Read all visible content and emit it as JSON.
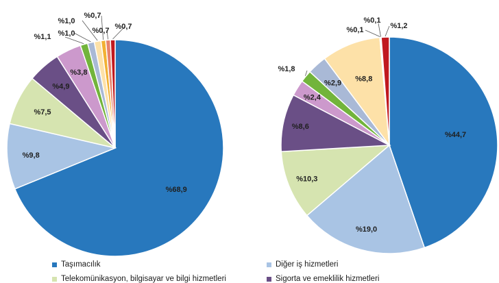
{
  "chart_data": [
    {
      "type": "pie",
      "slices": [
        {
          "label": "%68,9",
          "value": 68.9,
          "color": "#2878bd"
        },
        {
          "label": "%9,8",
          "value": 9.8,
          "color": "#a9c4e4"
        },
        {
          "label": "%7,5",
          "value": 7.5,
          "color": "#d6e4b0"
        },
        {
          "label": "%4,9",
          "value": 4.9,
          "color": "#6a4f86"
        },
        {
          "label": "%3,8",
          "value": 3.8,
          "color": "#cc99cc"
        },
        {
          "label": "%1,1",
          "value": 1.1,
          "color": "#72b43b"
        },
        {
          "label": "%1,0",
          "value": 1.0,
          "color": "#a9b9d6"
        },
        {
          "label": "%1,0",
          "value": 1.0,
          "color": "#fde1a8"
        },
        {
          "label": "%0,7",
          "value": 0.7,
          "color": "#f2b134"
        },
        {
          "label": "%0,7",
          "value": 0.7,
          "color": "#e8836b"
        },
        {
          "label": "%0,7",
          "value": 0.7,
          "color": "#c0191f"
        }
      ]
    },
    {
      "type": "pie",
      "slices": [
        {
          "label": "%44,7",
          "value": 44.7,
          "color": "#2878bd"
        },
        {
          "label": "%19,0",
          "value": 19.0,
          "color": "#a9c4e4"
        },
        {
          "label": "%10,3",
          "value": 10.3,
          "color": "#d6e4b0"
        },
        {
          "label": "%8,6",
          "value": 8.6,
          "color": "#6a4f86"
        },
        {
          "label": "%2,4",
          "value": 2.4,
          "color": "#cc99cc"
        },
        {
          "label": "%1,8",
          "value": 1.8,
          "color": "#72b43b"
        },
        {
          "label": "%2,9",
          "value": 2.9,
          "color": "#a9b9d6"
        },
        {
          "label": "%8,8",
          "value": 8.8,
          "color": "#fde1a8"
        },
        {
          "label": "%0,1",
          "value": 0.1,
          "color": "#f2b134"
        },
        {
          "label": "%0,1",
          "value": 0.1,
          "color": "#e8836b"
        },
        {
          "label": "%1,2",
          "value": 1.2,
          "color": "#c0191f"
        }
      ]
    }
  ],
  "legend": [
    {
      "label": "Taşımacılık",
      "color": "#2878bd"
    },
    {
      "label": "Diğer iş hizmetleri",
      "color": "#a9c4e4"
    },
    {
      "label": "Telekomünikasyon, bilgisayar ve bilgi hizmetleri",
      "color": "#d6e4b0"
    },
    {
      "label": "Sigorta ve emeklilik hizmetleri",
      "color": "#6a4f86"
    }
  ]
}
